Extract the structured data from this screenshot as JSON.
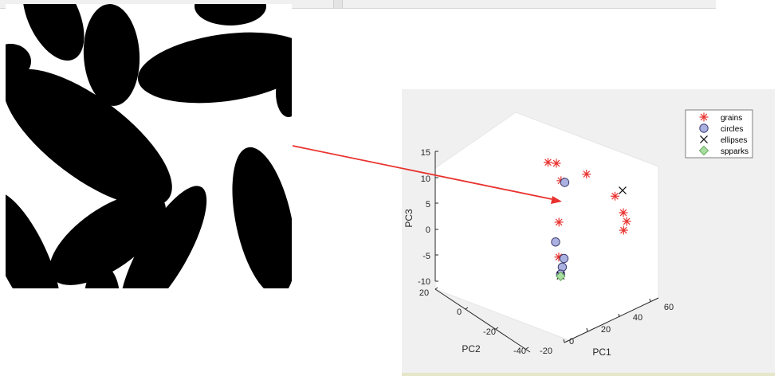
{
  "chart_data": {
    "type": "scatter",
    "projection": "3d",
    "legend_position": "top-right",
    "axes": {
      "x": {
        "label": "PC1",
        "ticks": [
          "-20",
          "0",
          "20",
          "40",
          "60"
        ]
      },
      "y": {
        "label": "PC2",
        "ticks": [
          "20",
          "0",
          "-20",
          "-40"
        ]
      },
      "z": {
        "label": "PC3",
        "ticks": [
          "15",
          "10",
          "5",
          "0",
          "-5",
          "-10"
        ],
        "range": [
          -10,
          15
        ]
      }
    },
    "series": [
      {
        "name": "grains",
        "marker": "asterisk",
        "color": "#e8322e",
        "points": [
          {
            "pc1": -15,
            "pc2": 0,
            "pc3": 14
          },
          {
            "pc1": -10,
            "pc2": 0,
            "pc3": 13
          },
          {
            "pc1": -12,
            "pc2": 5,
            "pc3": 11
          },
          {
            "pc1": 8,
            "pc2": 0,
            "pc3": 8
          },
          {
            "pc1": -18,
            "pc2": 10,
            "pc3": 5
          },
          {
            "pc1": -20,
            "pc2": 12,
            "pc3": -1
          },
          {
            "pc1": 25,
            "pc2": 0,
            "pc3": 1
          },
          {
            "pc1": 30,
            "pc2": 0,
            "pc3": -3
          },
          {
            "pc1": 32,
            "pc2": 0,
            "pc3": -5
          },
          {
            "pc1": 33,
            "pc2": -3,
            "pc3": -7.5
          }
        ]
      },
      {
        "name": "circles",
        "marker": "circle",
        "color": "#aab0e0",
        "points": [
          {
            "pc1": -5,
            "pc2": 0,
            "pc3": 8.5
          },
          {
            "pc1": -20,
            "pc2": 10,
            "pc3": 1.5
          },
          {
            "pc1": -15,
            "pc2": 10,
            "pc3": -2.5
          },
          {
            "pc1": -16,
            "pc2": 10,
            "pc3": -4
          },
          {
            "pc1": -17,
            "pc2": 10,
            "pc3": -5.2
          }
        ]
      },
      {
        "name": "ellipses",
        "marker": "x",
        "color": "#000000",
        "points": [
          {
            "pc1": 20,
            "pc2": 10,
            "pc3": 5
          },
          {
            "pc1": -17,
            "pc2": 10,
            "pc3": -5.5
          }
        ]
      },
      {
        "name": "spparks",
        "marker": "diamond",
        "color": "#a8dfa0",
        "points": [
          {
            "pc1": -17,
            "pc2": 10,
            "pc3": -5.6
          }
        ]
      }
    ]
  }
}
